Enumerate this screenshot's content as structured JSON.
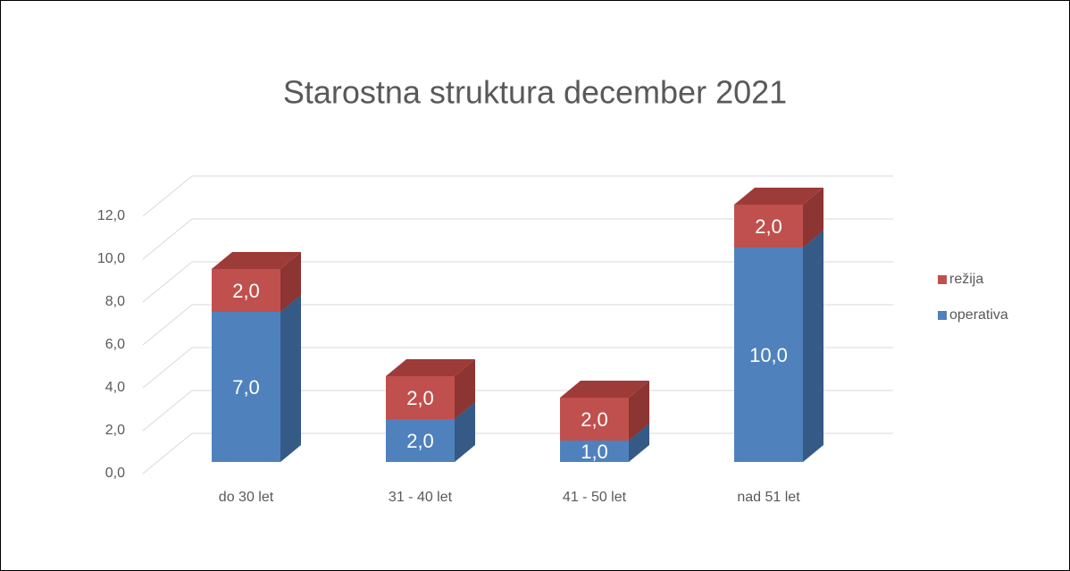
{
  "chart_data": {
    "type": "bar3d_stacked",
    "title": "Starostna struktura december 2021",
    "categories": [
      "do 30 let",
      "31 - 40 let",
      "41 - 50 let",
      "nad 51 let"
    ],
    "series": [
      {
        "name": "operativa",
        "color": "#4f81bd",
        "side": "#355a86",
        "top": "#3f6ea3",
        "values": [
          7,
          2,
          1,
          10
        ],
        "value_labels": [
          "7,0",
          "2,0",
          "1,0",
          "10,0"
        ]
      },
      {
        "name": "režija",
        "color": "#c0504d",
        "side": "#8c3532",
        "top": "#9d3b38",
        "values": [
          2,
          2,
          2,
          2
        ],
        "value_labels": [
          "2,0",
          "2,0",
          "2,0",
          "2,0"
        ]
      }
    ],
    "ylim": [
      0,
      12
    ],
    "yticks": [
      {
        "value": 0,
        "label": "0,0"
      },
      {
        "value": 2,
        "label": "2,0"
      },
      {
        "value": 4,
        "label": "4,0"
      },
      {
        "value": 6,
        "label": "6,0"
      },
      {
        "value": 8,
        "label": "8,0"
      },
      {
        "value": 10,
        "label": "10,0"
      },
      {
        "value": 12,
        "label": "12,0"
      }
    ],
    "grid": true,
    "legend": "right"
  }
}
